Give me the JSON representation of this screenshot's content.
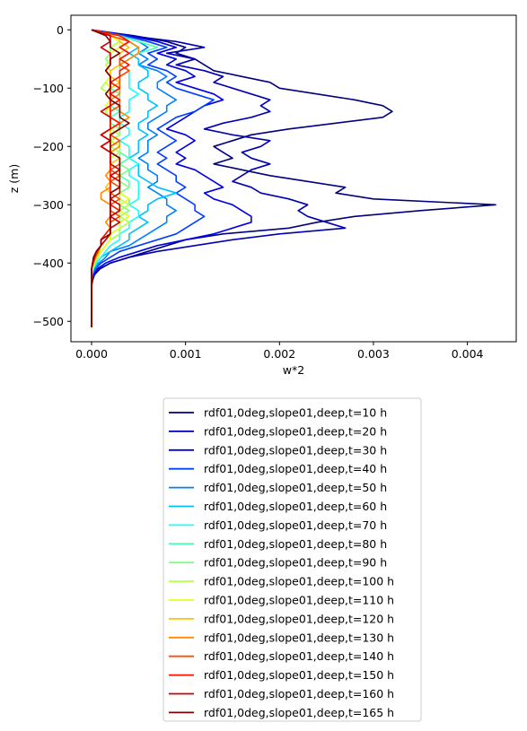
{
  "chart_data": {
    "type": "line",
    "title": "",
    "xlabel": "w*2",
    "ylabel": "z (m)",
    "xlim": [
      -0.00022,
      0.00452
    ],
    "ylim": [
      -535,
      25
    ],
    "xticks": [
      0.0,
      0.001,
      0.002,
      0.003,
      0.004
    ],
    "xtick_labels": [
      "0.000",
      "0.001",
      "0.002",
      "0.003",
      "0.004"
    ],
    "yticks": [
      0,
      -100,
      -200,
      -300,
      -400,
      -500
    ],
    "ytick_labels": [
      "0",
      "−100",
      "−200",
      "−300",
      "−400",
      "−500"
    ],
    "grid": false,
    "legend_position": "below plot, centered",
    "y": [
      0,
      -10,
      -20,
      -30,
      -40,
      -50,
      -60,
      -70,
      -80,
      -90,
      -100,
      -110,
      -120,
      -130,
      -140,
      -150,
      -160,
      -170,
      -180,
      -190,
      -200,
      -210,
      -220,
      -230,
      -240,
      -250,
      -260,
      -270,
      -280,
      -290,
      -300,
      -310,
      -320,
      -330,
      -340,
      -350,
      -360,
      -370,
      -380,
      -390,
      -400,
      -410,
      -420,
      -430,
      -440,
      -450,
      -460,
      -470,
      -480,
      -490,
      -500,
      -510
    ],
    "series": [
      {
        "name": "rdf01,0deg,slope01,deep,t=10 h",
        "color": "#00007f",
        "values": [
          0,
          0.00045,
          0.0008,
          0.001,
          0.0009,
          0.0011,
          0.0012,
          0.0013,
          0.0016,
          0.0019,
          0.002,
          0.0024,
          0.0028,
          0.0031,
          0.0032,
          0.0031,
          0.0026,
          0.0021,
          0.0017,
          0.0015,
          0.0013,
          0.0014,
          0.0015,
          0.0013,
          0.0016,
          0.0019,
          0.0023,
          0.0027,
          0.0026,
          0.003,
          0.0043,
          0.0035,
          0.0028,
          0.0024,
          0.0021,
          0.0014,
          0.001,
          0.0008,
          0.0006,
          0.0004,
          0.0002,
          8e-05,
          3e-05,
          1e-05,
          0,
          0,
          0,
          0,
          0,
          0,
          0,
          0
        ]
      },
      {
        "name": "rdf01,0deg,slope01,deep,t=20 h",
        "color": "#0000b2",
        "values": [
          0,
          0.0004,
          0.0009,
          0.0012,
          0.0008,
          0.0011,
          0.0009,
          0.0012,
          0.0014,
          0.0013,
          0.0015,
          0.0017,
          0.0019,
          0.0018,
          0.0019,
          0.0017,
          0.0014,
          0.0012,
          0.0015,
          0.0019,
          0.0018,
          0.0016,
          0.0017,
          0.0019,
          0.0017,
          0.0016,
          0.0015,
          0.0017,
          0.0018,
          0.0021,
          0.0023,
          0.0022,
          0.0023,
          0.0025,
          0.0027,
          0.002,
          0.0015,
          0.0011,
          0.0007,
          0.0004,
          0.0002,
          9e-05,
          3e-05,
          0,
          0,
          0,
          0,
          0,
          0,
          0,
          0,
          0
        ]
      },
      {
        "name": "rdf01,0deg,slope01,deep,t=30 h",
        "color": "#0000e5",
        "values": [
          0,
          0.0004,
          0.0007,
          0.0009,
          0.0007,
          0.0009,
          0.0008,
          0.001,
          0.0011,
          0.0009,
          0.0011,
          0.0013,
          0.0014,
          0.0012,
          0.0011,
          0.001,
          0.0009,
          0.0008,
          0.001,
          0.0011,
          0.001,
          0.0009,
          0.001,
          0.0009,
          0.0011,
          0.0012,
          0.0013,
          0.0014,
          0.0012,
          0.0013,
          0.0015,
          0.0016,
          0.0017,
          0.0017,
          0.0015,
          0.0013,
          0.001,
          0.0007,
          0.0005,
          0.0003,
          0.00015,
          6e-05,
          2e-05,
          0,
          0,
          0,
          0,
          0,
          0,
          0,
          0,
          0
        ]
      },
      {
        "name": "rdf01,0deg,slope01,deep,t=40 h",
        "color": "#0040ff",
        "values": [
          0,
          0.00035,
          0.0006,
          0.0008,
          0.0006,
          0.0007,
          0.0006,
          0.0008,
          0.0009,
          0.0008,
          0.0009,
          0.0011,
          0.0013,
          0.0012,
          0.0011,
          0.0009,
          0.0008,
          0.0007,
          0.0008,
          0.0009,
          0.0008,
          0.0007,
          0.0008,
          0.0007,
          0.0008,
          0.0009,
          0.0009,
          0.001,
          0.0009,
          0.001,
          0.0011,
          0.0011,
          0.0012,
          0.0011,
          0.001,
          0.0009,
          0.0007,
          0.0005,
          0.0003,
          0.0002,
          0.0001,
          4e-05,
          1e-05,
          0,
          0,
          0,
          0,
          0,
          0,
          0,
          0,
          0
        ]
      },
      {
        "name": "rdf01,0deg,slope01,deep,t=50 h",
        "color": "#0080ff",
        "values": [
          0,
          0.0003,
          0.0005,
          0.0006,
          0.0005,
          0.0006,
          0.0005,
          0.0007,
          0.0008,
          0.0007,
          0.0007,
          0.0008,
          0.0009,
          0.0008,
          0.0008,
          0.0007,
          0.0006,
          0.0006,
          0.0007,
          0.0006,
          0.0006,
          0.0006,
          0.0005,
          0.0006,
          0.0006,
          0.0007,
          0.0007,
          0.0006,
          0.0007,
          0.0008,
          0.0008,
          0.0009,
          0.0008,
          0.0008,
          0.0007,
          0.0006,
          0.0005,
          0.0004,
          0.0002,
          0.00015,
          8e-05,
          3e-05,
          1e-05,
          0,
          0,
          0,
          0,
          0,
          0,
          0,
          0,
          0
        ]
      },
      {
        "name": "rdf01,0deg,slope01,deep,t=60 h",
        "color": "#00c0ff",
        "values": [
          0,
          0.0003,
          0.0004,
          0.0005,
          0.0004,
          0.0005,
          0.0005,
          0.0006,
          0.0006,
          0.0005,
          0.0005,
          0.0006,
          0.0006,
          0.0007,
          0.0006,
          0.0006,
          0.0005,
          0.0005,
          0.0006,
          0.0005,
          0.0005,
          0.0005,
          0.0004,
          0.0005,
          0.0005,
          0.0005,
          0.0006,
          0.0007,
          0.0009,
          0.0007,
          0.0006,
          0.0006,
          0.0005,
          0.0006,
          0.0005,
          0.0004,
          0.0004,
          0.0003,
          0.0002,
          0.0001,
          6e-05,
          2e-05,
          0,
          0,
          0,
          0,
          0,
          0,
          0,
          0,
          0,
          0
        ]
      },
      {
        "name": "rdf01,0deg,slope01,deep,t=70 h",
        "color": "#1afffe",
        "values": [
          0,
          0.0003,
          0.0004,
          0.0003,
          0.0004,
          0.0003,
          0.0003,
          0.0004,
          0.0004,
          0.0004,
          0.0004,
          0.0005,
          0.0004,
          0.0004,
          0.0004,
          0.0003,
          0.0003,
          0.0004,
          0.0004,
          0.0003,
          0.0004,
          0.0004,
          0.0004,
          0.0005,
          0.0004,
          0.0004,
          0.0005,
          0.0005,
          0.0005,
          0.0005,
          0.0004,
          0.0005,
          0.0005,
          0.0004,
          0.0004,
          0.0003,
          0.0003,
          0.0002,
          0.00015,
          0.0001,
          5e-05,
          2e-05,
          0,
          0,
          0,
          0,
          0,
          0,
          0,
          0,
          0,
          0
        ]
      },
      {
        "name": "rdf01,0deg,slope01,deep,t=80 h",
        "color": "#4dffb2",
        "values": [
          0,
          0.0003,
          0.0005,
          0.0007,
          0.0005,
          0.0004,
          0.0003,
          0.0003,
          0.0003,
          0.0003,
          0.0002,
          0.0003,
          0.0003,
          0.0002,
          0.0003,
          0.0002,
          0.0002,
          0.0003,
          0.0003,
          0.0002,
          0.0003,
          0.0003,
          0.0004,
          0.0003,
          0.0003,
          0.0003,
          0.0004,
          0.0004,
          0.0003,
          0.0004,
          0.0004,
          0.0003,
          0.0004,
          0.0003,
          0.0003,
          0.0003,
          0.0002,
          0.00015,
          0.0001,
          7e-05,
          4e-05,
          1e-05,
          0,
          0,
          0,
          0,
          0,
          0,
          0,
          0,
          0,
          0
        ]
      },
      {
        "name": "rdf01,0deg,slope01,deep,t=90 h",
        "color": "#80ff80",
        "values": [
          0,
          0.0002,
          0.0003,
          0.0002,
          0.0002,
          0.00015,
          0.0002,
          0.00015,
          0.0002,
          0.0002,
          0.0002,
          0.00015,
          0.0002,
          0.0002,
          0.00015,
          0.0002,
          0.0002,
          0.0003,
          0.0003,
          0.0002,
          0.0003,
          0.0003,
          0.0003,
          0.0003,
          0.0004,
          0.0003,
          0.0003,
          0.0004,
          0.0003,
          0.0003,
          0.0003,
          0.0004,
          0.0003,
          0.0003,
          0.0003,
          0.0002,
          0.0002,
          0.00015,
          0.0001,
          6e-05,
          3e-05,
          1e-05,
          0,
          0,
          0,
          0,
          0,
          0,
          0,
          0,
          0,
          0
        ]
      },
      {
        "name": "rdf01,0deg,slope01,deep,t=100 h",
        "color": "#b3ff4d",
        "values": [
          0,
          0.0002,
          0.0003,
          0.0002,
          0.0003,
          0.0002,
          0.00015,
          0.0002,
          0.0002,
          0.00015,
          0.0001,
          0.0002,
          0.0002,
          0.0002,
          0.00015,
          0.0002,
          0.0002,
          0.0002,
          0.0003,
          0.0002,
          0.0002,
          0.0003,
          0.0002,
          0.0002,
          0.0003,
          0.0002,
          0.0003,
          0.0003,
          0.0003,
          0.0003,
          0.0004,
          0.0003,
          0.0003,
          0.0004,
          0.0003,
          0.0003,
          0.0002,
          0.00015,
          0.0001,
          6e-05,
          3e-05,
          1e-05,
          0,
          0,
          0,
          0,
          0,
          0,
          0,
          0,
          0,
          0
        ]
      },
      {
        "name": "rdf01,0deg,slope01,deep,t=110 h",
        "color": "#e5ff1a",
        "values": [
          0,
          0.0002,
          0.0003,
          0.0003,
          0.0002,
          0.0002,
          0.0002,
          0.00015,
          0.0002,
          0.00015,
          0.0002,
          0.0002,
          0.0002,
          0.00015,
          0.0002,
          0.0002,
          0.0002,
          0.0002,
          0.0002,
          0.0002,
          0.0003,
          0.0002,
          0.0002,
          0.0002,
          0.0003,
          0.0003,
          0.0003,
          0.0003,
          0.0003,
          0.0004,
          0.0003,
          0.0003,
          0.0004,
          0.0003,
          0.0003,
          0.0002,
          0.0002,
          0.00015,
          0.0001,
          6e-05,
          3e-05,
          1e-05,
          0,
          0,
          0,
          0,
          0,
          0,
          0,
          0,
          0,
          0
        ]
      },
      {
        "name": "rdf01,0deg,slope01,deep,t=120 h",
        "color": "#ffc400",
        "values": [
          0,
          0.0003,
          0.0003,
          0.0004,
          0.0003,
          0.0003,
          0.0003,
          0.0002,
          0.0002,
          0.0003,
          0.0002,
          0.0002,
          0.0003,
          0.0002,
          0.0002,
          0.0002,
          0.0003,
          0.0002,
          0.0002,
          0.0002,
          0.0002,
          0.0002,
          0.0003,
          0.0002,
          0.0002,
          0.0002,
          0.0002,
          0.00015,
          0.0002,
          0.0002,
          0.0002,
          0.0002,
          0.0003,
          0.0002,
          0.0002,
          0.0002,
          0.00015,
          0.0001,
          8e-05,
          5e-05,
          2e-05,
          0,
          0,
          0,
          0,
          0,
          0,
          0,
          0,
          0,
          0,
          0
        ]
      },
      {
        "name": "rdf01,0deg,slope01,deep,t=130 h",
        "color": "#ff8900",
        "values": [
          0,
          0.0003,
          0.0004,
          0.0005,
          0.0005,
          0.0004,
          0.0003,
          0.0004,
          0.0003,
          0.0003,
          0.0003,
          0.0003,
          0.0002,
          0.0003,
          0.0003,
          0.0004,
          0.0003,
          0.0003,
          0.0002,
          0.0003,
          0.0003,
          0.0002,
          0.0002,
          0.0002,
          0.0002,
          0.00015,
          0.0002,
          0.0002,
          0.0001,
          0.0001,
          0.0002,
          0.0002,
          0.0002,
          0.00015,
          0.0002,
          0.00015,
          0.0001,
          0.0001,
          6e-05,
          4e-05,
          2e-05,
          0,
          0,
          0,
          0,
          0,
          0,
          0,
          0,
          0,
          0,
          0
        ]
      },
      {
        "name": "rdf01,0deg,slope01,deep,t=140 h",
        "color": "#ff4e00",
        "values": [
          0,
          0.0002,
          0.0004,
          0.0003,
          0.0004,
          0.0003,
          0.0003,
          0.0004,
          0.0003,
          0.0003,
          0.0003,
          0.0002,
          0.0003,
          0.0003,
          0.0002,
          0.0002,
          0.0003,
          0.0003,
          0.0002,
          0.0003,
          0.0002,
          0.0002,
          0.0003,
          0.0003,
          0.0002,
          0.0003,
          0.0002,
          0.0003,
          0.0002,
          0.0003,
          0.0002,
          0.0002,
          0.0003,
          0.0002,
          0.0002,
          0.0002,
          0.00015,
          0.0001,
          7e-05,
          4e-05,
          2e-05,
          0,
          0,
          0,
          0,
          0,
          0,
          0,
          0,
          0,
          0,
          0
        ]
      },
      {
        "name": "rdf01,0deg,slope01,deep,t=150 h",
        "color": "#ff1400",
        "values": [
          0,
          0.0003,
          0.0004,
          0.0003,
          0.0004,
          0.0003,
          0.0004,
          0.0003,
          0.0003,
          0.0002,
          0.0003,
          0.0002,
          0.0003,
          0.0002,
          0.0002,
          0.0002,
          0.0003,
          0.0002,
          0.0001,
          0.0002,
          0.0001,
          0.0002,
          0.0002,
          0.0002,
          0.0002,
          0.0002,
          0.0002,
          0.0002,
          0.0002,
          0.0002,
          0.0002,
          0.0003,
          0.0002,
          0.0002,
          0.0002,
          0.00015,
          0.0001,
          0.0001,
          6e-05,
          3e-05,
          1e-05,
          0,
          0,
          0,
          0,
          0,
          0,
          0,
          0,
          0,
          0,
          0
        ]
      },
      {
        "name": "rdf01,0deg,slope01,deep,t=160 h",
        "color": "#cc0000",
        "values": [
          0,
          0.0002,
          0.0002,
          0.0001,
          0.0002,
          0.0002,
          0.0002,
          0.00015,
          0.0002,
          0.0002,
          0.0002,
          0.0002,
          0.0002,
          0.0002,
          0.0001,
          0.0002,
          0.0002,
          0.0002,
          0.0001,
          0.0002,
          0.0001,
          0.0002,
          0.0002,
          0.0002,
          0.0003,
          0.0002,
          0.0003,
          0.0003,
          0.0003,
          0.0002,
          0.0003,
          0.0003,
          0.0002,
          0.0003,
          0.0002,
          0.0002,
          0.00015,
          0.0001,
          5e-05,
          3e-05,
          1e-05,
          0,
          0,
          0,
          0,
          0,
          0,
          0,
          0,
          0,
          0,
          0
        ]
      },
      {
        "name": "rdf01,0deg,slope01,deep,t=165 h",
        "color": "#7f0000",
        "values": [
          0,
          0.00015,
          0.0002,
          0.0002,
          0.0003,
          0.0002,
          0.0002,
          0.00015,
          0.0002,
          0.0002,
          0.0002,
          0.00015,
          0.0002,
          0.0003,
          0.0003,
          0.0003,
          0.0004,
          0.0003,
          0.0002,
          0.0002,
          0.0002,
          0.0002,
          0.0003,
          0.0003,
          0.0003,
          0.0003,
          0.0003,
          0.0003,
          0.0002,
          0.0002,
          0.0002,
          0.0002,
          0.0002,
          0.0002,
          0.0002,
          0.0002,
          0.0001,
          0.0001,
          5e-05,
          2e-05,
          1e-05,
          0,
          0,
          0,
          0,
          0,
          0,
          0,
          0,
          0,
          0,
          0
        ]
      }
    ]
  }
}
